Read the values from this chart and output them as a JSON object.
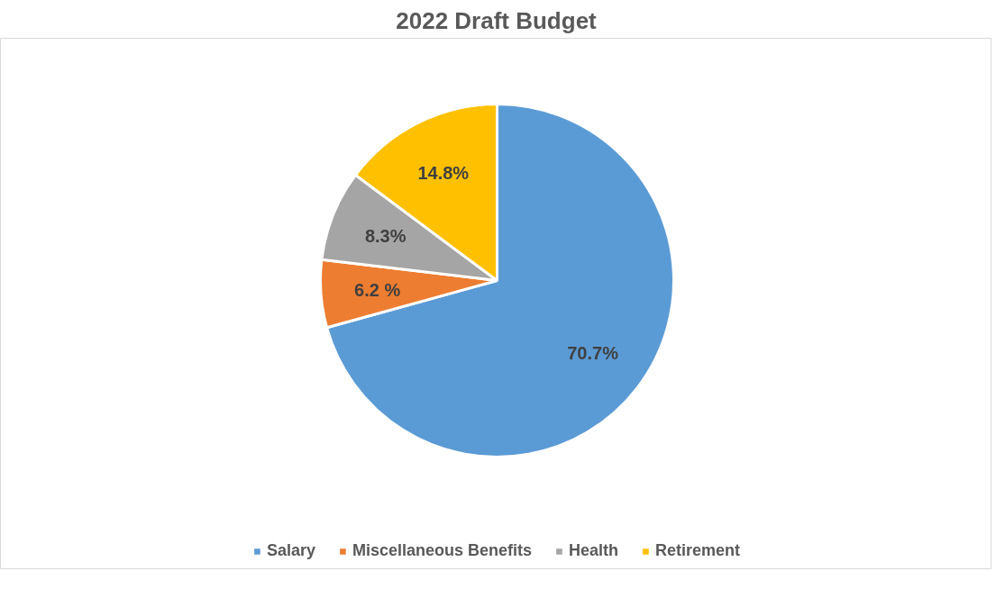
{
  "chart_data": {
    "type": "pie",
    "title": "2022 Draft Budget",
    "categories": [
      "Salary",
      "Miscellaneous Benefits",
      "Health",
      "Retirement"
    ],
    "values": [
      70.7,
      6.2,
      8.3,
      14.8
    ],
    "colors": [
      "#5b9bd5",
      "#ed7d31",
      "#a5a5a5",
      "#ffc000"
    ],
    "value_labels": [
      "70.7%",
      "6.2 %",
      "8.3%",
      "14.8%"
    ],
    "legend": "bottom"
  }
}
